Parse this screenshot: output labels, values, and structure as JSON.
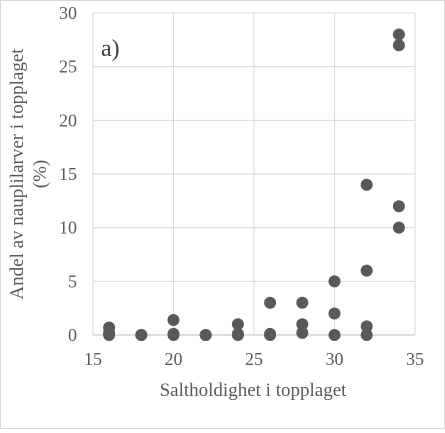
{
  "panel_label": "a)",
  "chart_data": {
    "type": "scatter",
    "title": "",
    "xlabel": "Saltholdighet i topplaget",
    "ylabel_lines": [
      "Andel av nauplilarver i topplaget",
      "(%)"
    ],
    "xlim": [
      15,
      35
    ],
    "ylim": [
      0,
      30
    ],
    "xticks": [
      15,
      20,
      25,
      30,
      35
    ],
    "yticks": [
      0,
      5,
      10,
      15,
      20,
      25,
      30
    ],
    "grid": {
      "x": true,
      "y": true
    },
    "marker_color": "#595959",
    "grid_color": "#d9d9d9",
    "series": [
      {
        "points": [
          [
            16,
            0.0
          ],
          [
            16,
            0.2
          ],
          [
            16,
            0.7
          ],
          [
            18,
            0.0
          ],
          [
            18,
            0.0
          ],
          [
            20,
            0.0
          ],
          [
            20,
            0.1
          ],
          [
            20,
            1.4
          ],
          [
            22,
            0.0
          ],
          [
            22,
            0.0
          ],
          [
            24,
            0.0
          ],
          [
            24,
            0.1
          ],
          [
            24,
            1.0
          ],
          [
            26,
            0.0
          ],
          [
            26,
            0.1
          ],
          [
            26,
            3.0
          ],
          [
            28,
            0.2
          ],
          [
            28,
            1.0
          ],
          [
            28,
            3.0
          ],
          [
            30,
            0.0
          ],
          [
            30,
            2.0
          ],
          [
            30,
            5.0
          ],
          [
            32,
            0.0
          ],
          [
            32,
            0.8
          ],
          [
            32,
            6.0
          ],
          [
            32,
            14.0
          ],
          [
            34,
            10.0
          ],
          [
            34,
            12.0
          ],
          [
            34,
            27.0
          ],
          [
            34,
            28.0
          ]
        ]
      }
    ]
  }
}
